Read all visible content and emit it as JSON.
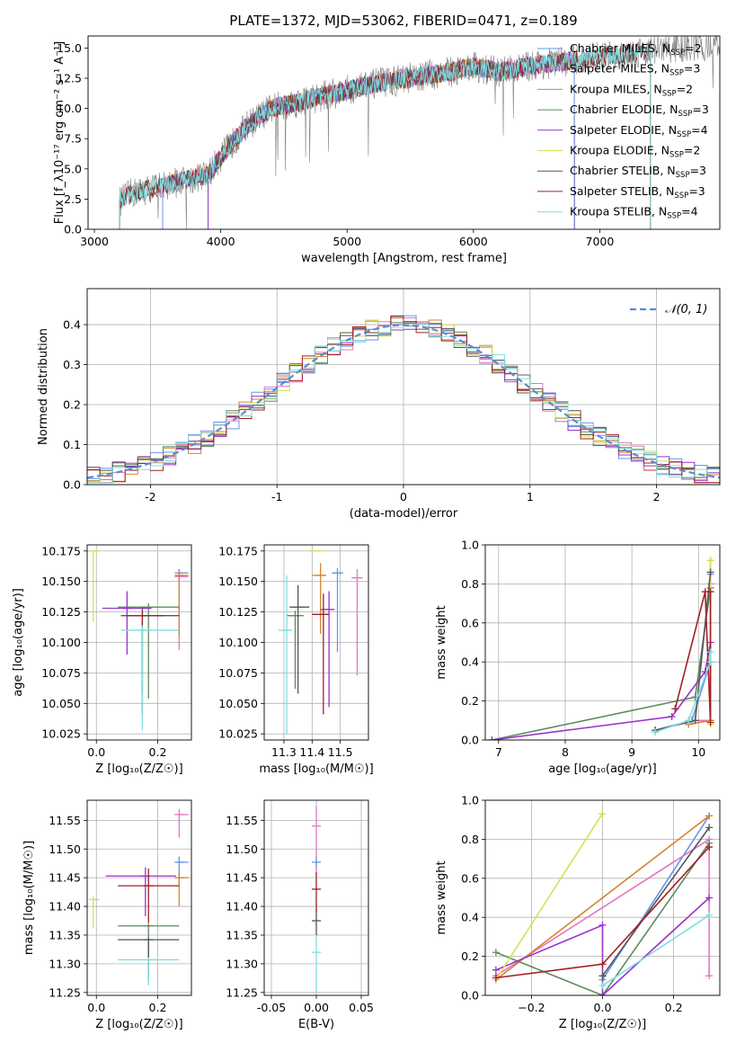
{
  "figure": {
    "title": "PLATE=1372, MJD=53062, FIBERID=0471, z=0.189"
  },
  "colors": {
    "chabrier_miles": "#6495ed",
    "salpeter_miles": "#e377c2",
    "kroupa_miles": "#d2842e",
    "chabrier_elodie": "#5e8c5e",
    "salpeter_elodie": "#9932cc",
    "kroupa_elodie": "#d4e157",
    "chabrier_stelib": "#555555",
    "salpeter_stelib": "#a31f24",
    "kroupa_stelib": "#80dede",
    "gaussian": "#5b8bd6",
    "grid": "#b0b0b0"
  },
  "chart_data": [
    {
      "id": "spectrum",
      "type": "line",
      "xlabel": "wavelength [Angstrom, rest frame]",
      "ylabel": "Flux [f_λ10⁻¹⁷ erg cm⁻² s⁻¹ A⁻¹]",
      "xlim": [
        2950,
        7950
      ],
      "ylim": [
        0,
        16
      ],
      "xticks": [
        3000,
        4000,
        5000,
        6000,
        7000
      ],
      "yticks": [
        0.0,
        2.5,
        5.0,
        7.5,
        10.0,
        12.5,
        15.0
      ],
      "legend_position": "right",
      "legend": [
        {
          "label": "Chabrier MILES, N",
          "sub": "SSP",
          "suffix": "=2",
          "color_key": "chabrier_miles"
        },
        {
          "label": "Salpeter MILES, N",
          "sub": "SSP",
          "suffix": "=3",
          "color_key": "salpeter_miles"
        },
        {
          "label": "Kroupa MILES, N",
          "sub": "SSP",
          "suffix": "=2",
          "color_key": "kroupa_miles"
        },
        {
          "label": "Chabrier ELODIE, N",
          "sub": "SSP",
          "suffix": "=3",
          "color_key": "chabrier_elodie"
        },
        {
          "label": "Salpeter ELODIE, N",
          "sub": "SSP",
          "suffix": "=4",
          "color_key": "salpeter_elodie"
        },
        {
          "label": "Kroupa ELODIE, N",
          "sub": "SSP",
          "suffix": "=2",
          "color_key": "kroupa_elodie"
        },
        {
          "label": "Chabrier STELIB, N",
          "sub": "SSP",
          "suffix": "=3",
          "color_key": "chabrier_stelib"
        },
        {
          "label": "Salpeter STELIB, N",
          "sub": "SSP",
          "suffix": "=3",
          "color_key": "salpeter_stelib"
        },
        {
          "label": "Kroupa STELIB, N",
          "sub": "SSP",
          "suffix": "=4",
          "color_key": "kroupa_stelib"
        }
      ],
      "data_envelope": {
        "x": [
          3200,
          3300,
          3500,
          3700,
          3900,
          4000,
          4200,
          4400,
          4600,
          4800,
          5000,
          5200,
          5500,
          5800,
          6000,
          6200,
          6500,
          6800,
          7000,
          7200,
          7400,
          7600,
          7900
        ],
        "y": [
          2.3,
          3.0,
          3.5,
          4.0,
          4.5,
          6.0,
          8.5,
          10.0,
          10.5,
          11.0,
          11.5,
          12.0,
          12.5,
          13.0,
          13.5,
          13.0,
          13.6,
          14.0,
          14.3,
          14.5,
          14.8,
          15.0,
          15.2
        ]
      },
      "model_starts": {
        "chabrier_miles": 3540,
        "salpeter_miles": 3540,
        "kroupa_miles": 3540,
        "chabrier_elodie": 3900,
        "salpeter_elodie": 3900,
        "kroupa_elodie": 3900,
        "chabrier_stelib": 3200,
        "salpeter_stelib": 3200,
        "kroupa_stelib": 3200
      },
      "model_ends": {
        "chabrier_miles": 6800,
        "salpeter_miles": 6800,
        "kroupa_miles": 6800,
        "chabrier_elodie": 6800,
        "salpeter_elodie": 6800,
        "kroupa_elodie": 6800,
        "chabrier_stelib": 7400,
        "salpeter_stelib": 7400,
        "kroupa_stelib": 7400
      }
    },
    {
      "id": "residual_hist",
      "type": "histogram",
      "xlabel": "(data-model)/error",
      "ylabel": "Normed distribution",
      "xlim": [
        -2.5,
        2.5
      ],
      "ylim": [
        0,
        0.49
      ],
      "xticks": [
        -2,
        -1,
        0,
        1,
        2
      ],
      "yticks": [
        0.0,
        0.1,
        0.2,
        0.3,
        0.4
      ],
      "grid": true,
      "legend_position": "top-right",
      "gaussian_label": "𝒩(0, 1)",
      "bin_width": 0.1,
      "bins_start": -2.5
    },
    {
      "id": "age_vs_Z",
      "type": "errorbar",
      "xlabel": "Z [log₁₀(Z/Z☉)]",
      "ylabel": "age  [log₁₀(age/yr)]",
      "xlim": [
        -0.03,
        0.31
      ],
      "ylim": [
        10.02,
        10.18
      ],
      "xticks": [
        0.0,
        0.2
      ],
      "yticks": [
        10.025,
        10.05,
        10.075,
        10.1,
        10.125,
        10.15,
        10.175
      ],
      "grid": true,
      "points": [
        {
          "key": "chabrier_miles",
          "x": 0.27,
          "xerr": [
            0.0,
            0.03
          ],
          "y": 10.157,
          "yerr": [
            0.005,
            0.002
          ]
        },
        {
          "key": "salpeter_miles",
          "x": 0.27,
          "xerr": [
            0.0,
            0.03
          ],
          "y": 10.154,
          "yerr": [
            0.06,
            0.006
          ]
        },
        {
          "key": "kroupa_miles",
          "x": 0.27,
          "xerr": [
            0.0,
            0.03
          ],
          "y": 10.155,
          "yerr": [
            0.05,
            0.005
          ]
        },
        {
          "key": "chabrier_elodie",
          "x": 0.17,
          "xerr": [
            0.1,
            0.1
          ],
          "y": 10.129,
          "yerr": [
            0.075,
            0.003
          ]
        },
        {
          "key": "salpeter_elodie",
          "x": 0.1,
          "xerr": [
            0.08,
            0.08
          ],
          "y": 10.128,
          "yerr": [
            0.038,
            0.014
          ]
        },
        {
          "key": "kroupa_elodie",
          "x": -0.01,
          "xerr": [
            0.0,
            0.02
          ],
          "y": 10.175,
          "yerr": [
            0.058,
            0.0
          ]
        },
        {
          "key": "chabrier_stelib",
          "x": 0.15,
          "xerr": [
            0.07,
            0.12
          ],
          "y": 10.122,
          "yerr": [
            0.062,
            0.007
          ]
        },
        {
          "key": "salpeter_stelib",
          "x": 0.15,
          "xerr": [
            0.05,
            0.07
          ],
          "y": 10.122,
          "yerr": [
            0.081,
            0.004
          ]
        },
        {
          "key": "kroupa_stelib",
          "x": 0.15,
          "xerr": [
            0.07,
            0.12
          ],
          "y": 10.11,
          "yerr": [
            0.082,
            0.004
          ]
        }
      ]
    },
    {
      "id": "age_vs_mass",
      "type": "errorbar",
      "xlabel": "mass [log₁₀(M/M☉)]",
      "ylabel": "",
      "xlim": [
        11.23,
        11.6
      ],
      "ylim": [
        10.02,
        10.18
      ],
      "xticks": [
        11.3,
        11.4,
        11.5
      ],
      "yticks": [
        10.025,
        10.05,
        10.075,
        10.1,
        10.125,
        10.15,
        10.175
      ],
      "grid": true,
      "points": [
        {
          "key": "chabrier_miles",
          "x": 11.49,
          "xerr": [
            0.02,
            0.02
          ],
          "y": 10.157,
          "yerr": [
            0.065,
            0.004
          ]
        },
        {
          "key": "salpeter_miles",
          "x": 11.56,
          "xerr": [
            0.02,
            0.02
          ],
          "y": 10.153,
          "yerr": [
            0.08,
            0.007
          ]
        },
        {
          "key": "kroupa_miles",
          "x": 11.43,
          "xerr": [
            0.03,
            0.02
          ],
          "y": 10.155,
          "yerr": [
            0.048,
            0.01
          ]
        },
        {
          "key": "chabrier_elodie",
          "x": 11.34,
          "xerr": [
            0.03,
            0.03
          ],
          "y": 10.122,
          "yerr": [
            0.06,
            0.004
          ]
        },
        {
          "key": "salpeter_elodie",
          "x": 11.46,
          "xerr": [
            0.03,
            0.02
          ],
          "y": 10.127,
          "yerr": [
            0.08,
            0.015
          ]
        },
        {
          "key": "kroupa_elodie",
          "x": 11.41,
          "xerr": [
            0.02,
            0.03
          ],
          "y": 10.175,
          "yerr": [
            0.0,
            0.0
          ]
        },
        {
          "key": "chabrier_stelib",
          "x": 11.35,
          "xerr": [
            0.03,
            0.04
          ],
          "y": 10.129,
          "yerr": [
            0.071,
            0.018
          ]
        },
        {
          "key": "salpeter_stelib",
          "x": 11.44,
          "xerr": [
            0.04,
            0.02
          ],
          "y": 10.123,
          "yerr": [
            0.082,
            0.017
          ]
        },
        {
          "key": "kroupa_stelib",
          "x": 11.31,
          "xerr": [
            0.03,
            0.02
          ],
          "y": 10.11,
          "yerr": [
            0.085,
            0.045
          ]
        }
      ]
    },
    {
      "id": "weight_vs_age",
      "type": "line",
      "xlabel": "age  [log₁₀(age/yr)]",
      "ylabel": "mass weight",
      "xlim": [
        6.8,
        10.32
      ],
      "ylim": [
        0,
        1.0
      ],
      "xticks": [
        7,
        8,
        9,
        10
      ],
      "yticks": [
        0.0,
        0.2,
        0.4,
        0.6,
        0.8,
        1.0
      ],
      "grid": true,
      "series": [
        {
          "key": "chabrier_miles",
          "x": [
            9.35,
            9.9,
            10.18,
            10.18
          ],
          "y": [
            0.05,
            0.1,
            0.4,
            0.85
          ]
        },
        {
          "key": "salpeter_miles",
          "x": [
            9.85,
            10.18,
            10.18
          ],
          "y": [
            0.1,
            0.1,
            0.8
          ]
        },
        {
          "key": "kroupa_miles",
          "x": [
            9.85,
            10.18,
            10.18
          ],
          "y": [
            0.08,
            0.1,
            0.92
          ]
        },
        {
          "key": "chabrier_elodie",
          "x": [
            6.9,
            9.95,
            10.18
          ],
          "y": [
            0.0,
            0.22,
            0.78
          ]
        },
        {
          "key": "salpeter_elodie",
          "x": [
            6.9,
            9.6,
            10.1,
            10.18
          ],
          "y": [
            0.0,
            0.12,
            0.35,
            0.5
          ]
        },
        {
          "key": "kroupa_elodie",
          "x": [
            10.18,
            10.18
          ],
          "y": [
            0.08,
            0.92
          ]
        },
        {
          "key": "chabrier_stelib",
          "x": [
            9.35,
            9.95,
            10.18
          ],
          "y": [
            0.05,
            0.1,
            0.86
          ]
        },
        {
          "key": "salpeter_stelib",
          "x": [
            9.65,
            10.1,
            10.18,
            10.18
          ],
          "y": [
            0.16,
            0.76,
            0.09,
            0.76
          ]
        },
        {
          "key": "kroupa_stelib",
          "x": [
            9.35,
            9.85,
            10.18,
            10.18
          ],
          "y": [
            0.04,
            0.1,
            0.4,
            0.45
          ]
        }
      ]
    },
    {
      "id": "mass_vs_Z",
      "type": "errorbar",
      "xlabel": "Z [log₁₀(Z/Z☉)]",
      "ylabel": "mass [log₁₀(M/M☉)]",
      "xlim": [
        -0.03,
        0.31
      ],
      "ylim": [
        11.245,
        11.585
      ],
      "xticks": [
        0.0,
        0.2
      ],
      "yticks": [
        11.25,
        11.3,
        11.35,
        11.4,
        11.45,
        11.5,
        11.55
      ],
      "grid": true,
      "points": [
        {
          "key": "chabrier_miles",
          "x": 0.27,
          "xerr": [
            0.0,
            0.03
          ],
          "y": 11.477,
          "yerr": [
            0.04,
            0.01
          ]
        },
        {
          "key": "salpeter_miles",
          "x": 0.27,
          "xerr": [
            0.0,
            0.03
          ],
          "y": 11.56,
          "yerr": [
            0.04,
            0.01
          ]
        },
        {
          "key": "kroupa_miles",
          "x": 0.27,
          "xerr": [
            0.0,
            0.03
          ],
          "y": 11.45,
          "yerr": [
            0.05,
            0.01
          ]
        },
        {
          "key": "chabrier_elodie",
          "x": 0.17,
          "xerr": [
            0.1,
            0.1
          ],
          "y": 11.366,
          "yerr": [
            0.09,
            0.004
          ]
        },
        {
          "key": "salpeter_elodie",
          "x": 0.16,
          "xerr": [
            0.13,
            0.1
          ],
          "y": 11.453,
          "yerr": [
            0.07,
            0.015
          ]
        },
        {
          "key": "kroupa_elodie",
          "x": -0.01,
          "xerr": [
            0.0,
            0.02
          ],
          "y": 11.412,
          "yerr": [
            0.05,
            0.005
          ]
        },
        {
          "key": "chabrier_stelib",
          "x": 0.17,
          "xerr": [
            0.1,
            0.1
          ],
          "y": 11.342,
          "yerr": [
            0.07,
            0.004
          ]
        },
        {
          "key": "salpeter_stelib",
          "x": 0.17,
          "xerr": [
            0.1,
            0.1
          ],
          "y": 11.436,
          "yerr": [
            0.065,
            0.03
          ]
        },
        {
          "key": "kroupa_stelib",
          "x": 0.17,
          "xerr": [
            0.1,
            0.1
          ],
          "y": 11.307,
          "yerr": [
            0.045,
            0.004
          ]
        }
      ]
    },
    {
      "id": "mass_vs_ebv",
      "type": "errorbar",
      "xlabel": "E(B-V)",
      "ylabel": "",
      "xlim": [
        -0.058,
        0.058
      ],
      "ylim": [
        11.245,
        11.585
      ],
      "xticks": [
        -0.05,
        0.0,
        0.05
      ],
      "yticks": [
        11.25,
        11.3,
        11.35,
        11.4,
        11.45,
        11.5,
        11.55
      ],
      "grid": true,
      "points": [
        {
          "key": "salpeter_miles",
          "x": 0.0,
          "xerr": [
            0,
            0
          ],
          "y": 11.54,
          "yerr": [
            0.08,
            0.035
          ]
        },
        {
          "key": "chabrier_miles",
          "x": 0.0,
          "xerr": [
            0,
            0
          ],
          "y": 11.477,
          "yerr": [
            0.01,
            0.01
          ]
        },
        {
          "key": "salpeter_stelib",
          "x": 0.0,
          "xerr": [
            0,
            0
          ],
          "y": 11.43,
          "yerr": [
            0.04,
            0.03
          ]
        },
        {
          "key": "chabrier_stelib",
          "x": 0.0,
          "xerr": [
            0,
            0
          ],
          "y": 11.375,
          "yerr": [
            0.025,
            0.02
          ]
        },
        {
          "key": "kroupa_stelib",
          "x": 0.0,
          "xerr": [
            0,
            0
          ],
          "y": 11.32,
          "yerr": [
            0.07,
            0.03
          ]
        }
      ]
    },
    {
      "id": "weight_vs_Z",
      "type": "line",
      "xlabel": "Z [log₁₀(Z/Z☉)]",
      "ylabel": "mass weight",
      "xlim": [
        -0.33,
        0.33
      ],
      "ylim": [
        0,
        1.0
      ],
      "xticks": [
        -0.2,
        0.0,
        0.2
      ],
      "yticks": [
        0.0,
        0.2,
        0.4,
        0.6,
        0.8,
        1.0
      ],
      "grid": true,
      "series": [
        {
          "key": "chabrier_miles",
          "x": [
            0.0,
            0.3
          ],
          "y": [
            0.08,
            0.92
          ]
        },
        {
          "key": "salpeter_miles",
          "x": [
            -0.3,
            0.3,
            0.3
          ],
          "y": [
            0.1,
            0.8,
            0.1
          ]
        },
        {
          "key": "kroupa_miles",
          "x": [
            -0.3,
            0.3
          ],
          "y": [
            0.08,
            0.92
          ]
        },
        {
          "key": "chabrier_elodie",
          "x": [
            -0.3,
            0.0,
            0.3
          ],
          "y": [
            0.22,
            0.0,
            0.78
          ]
        },
        {
          "key": "salpeter_elodie",
          "x": [
            -0.3,
            0.0,
            0.0,
            0.3
          ],
          "y": [
            0.13,
            0.36,
            0.0,
            0.5
          ]
        },
        {
          "key": "kroupa_elodie",
          "x": [
            -0.3,
            -0.001
          ],
          "y": [
            0.08,
            0.93
          ]
        },
        {
          "key": "chabrier_stelib",
          "x": [
            0.0,
            0.3
          ],
          "y": [
            0.1,
            0.86
          ]
        },
        {
          "key": "salpeter_stelib",
          "x": [
            -0.3,
            0.0,
            0.3
          ],
          "y": [
            0.09,
            0.16,
            0.76
          ]
        },
        {
          "key": "kroupa_stelib",
          "x": [
            0.0,
            0.3
          ],
          "y": [
            0.05,
            0.41
          ]
        }
      ]
    }
  ]
}
